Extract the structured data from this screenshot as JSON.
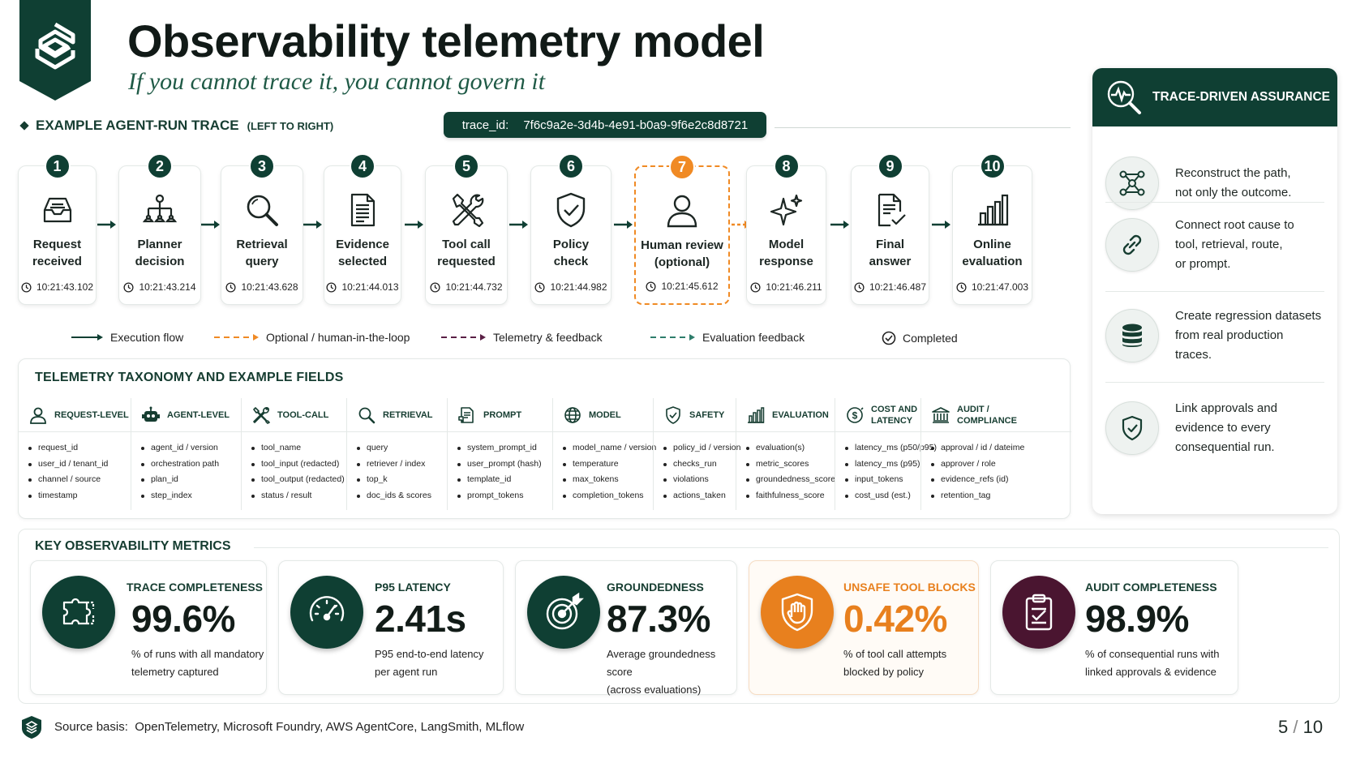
{
  "header": {
    "title": "Observability telemetry model",
    "subtitle": "If you cannot trace it, you cannot govern it"
  },
  "trace": {
    "heading": "EXAMPLE AGENT-RUN TRACE",
    "heading_note": "(LEFT TO RIGHT)",
    "id_label": "trace_id:",
    "id_value": "7f6c9a2e-3d4b-4e91-b0a9-9f6e2c8d8721",
    "steps": [
      {
        "num": "1",
        "label": "Request\nreceived",
        "time": "10:21:43.102",
        "icon": "inbox-icon"
      },
      {
        "num": "2",
        "label": "Planner\ndecision",
        "time": "10:21:43.214",
        "icon": "hierarchy-icon"
      },
      {
        "num": "3",
        "label": "Retrieval\nquery",
        "time": "10:21:43.628",
        "icon": "search-icon"
      },
      {
        "num": "4",
        "label": "Evidence\nselected",
        "time": "10:21:44.013",
        "icon": "document-icon"
      },
      {
        "num": "5",
        "label": "Tool call\nrequested",
        "time": "10:21:44.732",
        "icon": "tools-icon"
      },
      {
        "num": "6",
        "label": "Policy\ncheck",
        "time": "10:21:44.982",
        "icon": "shield-check-icon"
      },
      {
        "num": "7",
        "label": "Human review\n(optional)",
        "time": "10:21:45.612",
        "icon": "person-icon"
      },
      {
        "num": "8",
        "label": "Model\nresponse",
        "time": "10:21:46.211",
        "icon": "sparkle-icon"
      },
      {
        "num": "9",
        "label": "Final\nanswer",
        "time": "10:21:46.487",
        "icon": "document-check-icon"
      },
      {
        "num": "10",
        "label": "Online\nevaluation",
        "time": "10:21:47.003",
        "icon": "bar-chart-icon"
      }
    ],
    "legend": {
      "execution": "Execution flow",
      "optional": "Optional / human-in-the-loop",
      "telemetry": "Telemetry & feedback",
      "evaluation": "Evaluation feedback",
      "completed": "Completed"
    }
  },
  "taxonomy": {
    "title": "TELEMETRY TAXONOMY AND EXAMPLE FIELDS",
    "columns": [
      {
        "title": "REQUEST-LEVEL",
        "icon": "user-icon",
        "fields": [
          "request_id",
          "user_id / tenant_id",
          "channel / source",
          "timestamp"
        ]
      },
      {
        "title": "AGENT-LEVEL",
        "icon": "robot-icon",
        "fields": [
          "agent_id / version",
          "orchestration path",
          "plan_id",
          "step_index"
        ]
      },
      {
        "title": "TOOL-CALL",
        "icon": "tools-icon",
        "fields": [
          "tool_name",
          "tool_input (redacted)",
          "tool_output (redacted)",
          "status / result"
        ]
      },
      {
        "title": "RETRIEVAL",
        "icon": "search-icon",
        "fields": [
          "query",
          "retriever / index",
          "top_k",
          "doc_ids & scores"
        ]
      },
      {
        "title": "PROMPT",
        "icon": "prompt-icon",
        "fields": [
          "system_prompt_id",
          "user_prompt (hash)",
          "template_id",
          "prompt_tokens"
        ]
      },
      {
        "title": "MODEL",
        "icon": "globe-icon",
        "fields": [
          "model_name / version",
          "temperature",
          "max_tokens",
          "completion_tokens"
        ]
      },
      {
        "title": "SAFETY",
        "icon": "shield-check-icon",
        "fields": [
          "policy_id / version",
          "checks_run",
          "violations",
          "actions_taken"
        ]
      },
      {
        "title": "EVALUATION",
        "icon": "bar-chart-icon",
        "fields": [
          "evaluation(s)",
          "metric_scores",
          "groundedness_score",
          "faithfulness_score"
        ]
      },
      {
        "title": "COST AND\nLATENCY",
        "icon": "cost-icon",
        "fields": [
          "latency_ms (p50/p95)",
          "latency_ms (p95)",
          "input_tokens",
          "cost_usd (est.)"
        ]
      },
      {
        "title": "AUDIT /\nCOMPLIANCE",
        "icon": "bank-icon",
        "fields": [
          "approval / id / dateime",
          "approver / role",
          "evidence_refs (id)",
          "retention_tag"
        ]
      }
    ]
  },
  "assurance": {
    "title": "TRACE-DRIVEN ASSURANCE",
    "items": [
      {
        "text": "Reconstruct the path,\nnot only the outcome.",
        "icon": "network-icon"
      },
      {
        "text": "Connect root cause to\ntool, retrieval, route,\nor prompt.",
        "icon": "link-icon"
      },
      {
        "text": "Create regression datasets\nfrom real production\ntraces.",
        "icon": "database-icon"
      },
      {
        "text": "Link approvals and\nevidence to every\nconsequential run.",
        "icon": "shield-check-icon"
      }
    ]
  },
  "metrics": {
    "title": "KEY OBSERVABILITY METRICS",
    "cards": [
      {
        "label": "TRACE COMPLETENESS",
        "value": "99.6%",
        "desc": "% of runs with all mandatory\ntelemetry captured",
        "icon": "puzzle-icon",
        "color": "#0f3f33"
      },
      {
        "label": "P95 LATENCY",
        "value": "2.41s",
        "desc": "P95 end-to-end latency\nper agent run",
        "icon": "speedometer-icon",
        "color": "#0f3f33"
      },
      {
        "label": "GROUNDEDNESS",
        "value": "87.3%",
        "desc": "Average groundedness score\n(across evaluations)",
        "icon": "target-icon",
        "color": "#0f3f33"
      },
      {
        "label": "UNSAFE TOOL BLOCKS",
        "value": "0.42%",
        "desc": "% of tool call attempts\nblocked by policy",
        "icon": "shield-hand-icon",
        "color": "#e8801e"
      },
      {
        "label": "AUDIT COMPLETENESS",
        "value": "98.9%",
        "desc": "% of consequential runs with\nlinked approvals & evidence",
        "icon": "clipboard-check-icon",
        "color": "#4a1530"
      }
    ]
  },
  "footer": {
    "source_label": "Source basis:",
    "source_text": "OpenTelemetry, Microsoft Foundry, AWS AgentCore, LangSmith, MLflow",
    "page_current": "5",
    "page_sep": "/",
    "page_total": "10"
  },
  "colors": {
    "primary": "#0f3f33",
    "accent_orange": "#f08a24",
    "accent_plum": "#4a1530",
    "telemetry_purple": "#5a1f45",
    "eval_teal": "#2e7d6b"
  }
}
